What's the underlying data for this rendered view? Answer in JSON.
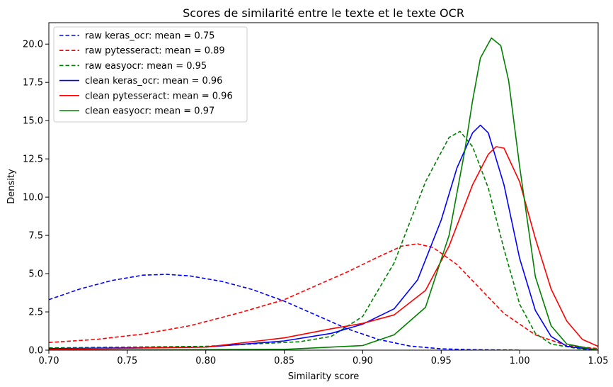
{
  "chart_data": {
    "type": "line",
    "title": "Scores de similarité entre le texte et le texte OCR",
    "xlabel": "Similarity score",
    "ylabel": "Density",
    "xlim": [
      0.7,
      1.05
    ],
    "ylim": [
      0,
      21.4
    ],
    "xticks": [
      "0.70",
      "0.75",
      "0.80",
      "0.85",
      "0.90",
      "0.95",
      "1.00",
      "1.05"
    ],
    "yticks": [
      "0.0",
      "2.5",
      "5.0",
      "7.5",
      "10.0",
      "12.5",
      "15.0",
      "17.5",
      "20.0"
    ],
    "grid": false,
    "legend_position": "top-left",
    "series": [
      {
        "name": "raw keras_ocr: mean = 0.75",
        "color": "#0000ff",
        "dashed": true,
        "x": [
          0.7,
          0.72,
          0.74,
          0.76,
          0.775,
          0.79,
          0.81,
          0.83,
          0.85,
          0.87,
          0.89,
          0.91,
          0.93,
          0.95,
          0.97,
          0.99,
          1.0
        ],
        "y": [
          3.3,
          4.0,
          4.55,
          4.9,
          4.95,
          4.85,
          4.5,
          3.95,
          3.2,
          2.3,
          1.4,
          0.7,
          0.27,
          0.09,
          0.03,
          0.01,
          0.0
        ]
      },
      {
        "name": "raw pytesseract: mean = 0.89",
        "color": "#ff0000",
        "dashed": true,
        "x": [
          0.7,
          0.73,
          0.76,
          0.79,
          0.82,
          0.85,
          0.87,
          0.89,
          0.91,
          0.925,
          0.935,
          0.945,
          0.96,
          0.975,
          0.99,
          1.01,
          1.03,
          1.05
        ],
        "y": [
          0.5,
          0.7,
          1.05,
          1.6,
          2.4,
          3.3,
          4.2,
          5.1,
          6.1,
          6.8,
          6.95,
          6.7,
          5.6,
          4.0,
          2.4,
          1.0,
          0.3,
          0.1
        ]
      },
      {
        "name": "raw easyocr: mean = 0.95",
        "color": "#008000",
        "dashed": true,
        "x": [
          0.7,
          0.8,
          0.86,
          0.88,
          0.9,
          0.92,
          0.94,
          0.955,
          0.962,
          0.97,
          0.98,
          0.99,
          1.0,
          1.01,
          1.02,
          1.04,
          1.05
        ],
        "y": [
          0.15,
          0.25,
          0.55,
          0.9,
          2.2,
          5.7,
          11.0,
          13.9,
          14.3,
          13.3,
          10.6,
          6.6,
          3.0,
          1.1,
          0.4,
          0.05,
          0.0
        ]
      },
      {
        "name": "clean keras_ocr: mean = 0.96",
        "color": "#0000ff",
        "dashed": false,
        "x": [
          0.7,
          0.8,
          0.85,
          0.88,
          0.9,
          0.92,
          0.935,
          0.95,
          0.96,
          0.97,
          0.975,
          0.98,
          0.99,
          1.0,
          1.01,
          1.02,
          1.03,
          1.05
        ],
        "y": [
          0.1,
          0.2,
          0.6,
          1.1,
          1.7,
          2.7,
          4.6,
          8.5,
          11.9,
          14.2,
          14.7,
          14.2,
          10.8,
          6.0,
          2.6,
          0.9,
          0.25,
          0.0
        ]
      },
      {
        "name": "clean pytesseract: mean = 0.96",
        "color": "#ff0000",
        "dashed": false,
        "x": [
          0.7,
          0.8,
          0.85,
          0.88,
          0.9,
          0.92,
          0.94,
          0.955,
          0.97,
          0.98,
          0.985,
          0.99,
          1.0,
          1.01,
          1.02,
          1.03,
          1.04,
          1.05
        ],
        "y": [
          0.05,
          0.2,
          0.8,
          1.4,
          1.75,
          2.3,
          3.9,
          6.8,
          10.8,
          12.8,
          13.3,
          13.2,
          11.0,
          7.3,
          4.0,
          1.9,
          0.7,
          0.25
        ]
      },
      {
        "name": "clean easyocr: mean = 0.97",
        "color": "#008000",
        "dashed": false,
        "x": [
          0.7,
          0.85,
          0.9,
          0.92,
          0.94,
          0.955,
          0.965,
          0.97,
          0.975,
          0.982,
          0.988,
          0.993,
          1.0,
          1.01,
          1.02,
          1.03,
          1.05
        ],
        "y": [
          0.0,
          0.05,
          0.3,
          1.0,
          2.8,
          7.5,
          13.0,
          16.3,
          19.1,
          20.4,
          19.9,
          17.6,
          12.0,
          4.8,
          1.6,
          0.4,
          0.0
        ]
      }
    ]
  }
}
